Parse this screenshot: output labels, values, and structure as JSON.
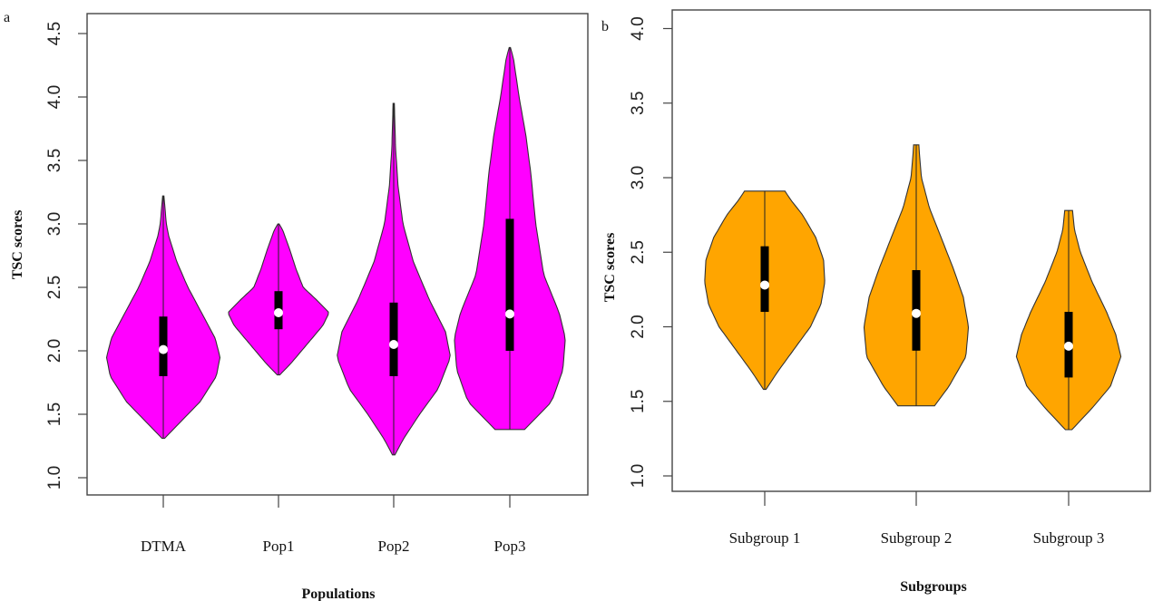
{
  "chart_data": [
    {
      "type": "violin",
      "panel_label": "a",
      "xlabel": "Populations",
      "ylabel": "TSC scores",
      "ylim": [
        1.0,
        4.5
      ],
      "yticks": [
        "1.0",
        "1.5",
        "2.0",
        "2.5",
        "3.0",
        "3.5",
        "4.0",
        "4.5"
      ],
      "fill_color": "#ff00ff",
      "categories": [
        "DTMA",
        "Pop1",
        "Pop2",
        "Pop3"
      ],
      "violins": [
        {
          "category": "DTMA",
          "min": 1.31,
          "q1": 1.8,
          "median": 2.01,
          "q3": 2.27,
          "max": 3.22,
          "profile": [
            [
              1.31,
              0.02
            ],
            [
              1.45,
              0.3
            ],
            [
              1.6,
              0.6
            ],
            [
              1.8,
              0.86
            ],
            [
              1.95,
              0.92
            ],
            [
              2.1,
              0.84
            ],
            [
              2.3,
              0.62
            ],
            [
              2.5,
              0.4
            ],
            [
              2.7,
              0.22
            ],
            [
              2.9,
              0.09
            ],
            [
              3.0,
              0.05
            ],
            [
              3.22,
              0.01
            ]
          ]
        },
        {
          "category": "Pop1",
          "min": 1.81,
          "q1": 2.17,
          "median": 2.3,
          "q3": 2.47,
          "max": 3.0,
          "profile": [
            [
              1.81,
              0.02
            ],
            [
              1.9,
              0.2
            ],
            [
              2.05,
              0.46
            ],
            [
              2.2,
              0.72
            ],
            [
              2.3,
              0.82
            ],
            [
              2.4,
              0.62
            ],
            [
              2.5,
              0.4
            ],
            [
              2.65,
              0.28
            ],
            [
              2.8,
              0.18
            ],
            [
              2.95,
              0.07
            ],
            [
              3.0,
              0.01
            ]
          ]
        },
        {
          "category": "Pop2",
          "min": 1.18,
          "q1": 1.8,
          "median": 2.05,
          "q3": 2.38,
          "max": 3.95,
          "profile": [
            [
              1.18,
              0.02
            ],
            [
              1.3,
              0.15
            ],
            [
              1.5,
              0.42
            ],
            [
              1.7,
              0.72
            ],
            [
              1.95,
              0.92
            ],
            [
              2.15,
              0.84
            ],
            [
              2.4,
              0.58
            ],
            [
              2.7,
              0.32
            ],
            [
              3.0,
              0.15
            ],
            [
              3.3,
              0.07
            ],
            [
              3.6,
              0.03
            ],
            [
              3.95,
              0.01
            ]
          ]
        },
        {
          "category": "Pop3",
          "min": 1.38,
          "q1": 2.0,
          "median": 2.29,
          "q3": 3.04,
          "max": 4.39,
          "profile": [
            [
              1.38,
              0.24
            ],
            [
              1.6,
              0.68
            ],
            [
              1.85,
              0.86
            ],
            [
              2.1,
              0.9
            ],
            [
              2.3,
              0.8
            ],
            [
              2.6,
              0.55
            ],
            [
              3.0,
              0.42
            ],
            [
              3.4,
              0.34
            ],
            [
              3.7,
              0.26
            ],
            [
              4.0,
              0.15
            ],
            [
              4.3,
              0.06
            ],
            [
              4.39,
              0.01
            ]
          ]
        }
      ]
    },
    {
      "type": "violin",
      "panel_label": "b",
      "xlabel": "Subgroups",
      "ylabel": "TSC scores",
      "ylim": [
        1.0,
        4.0
      ],
      "yticks": [
        "1.0",
        "1.5",
        "2.0",
        "2.5",
        "3.0",
        "3.5",
        "4.0"
      ],
      "fill_color": "#ffa500",
      "categories": [
        "Subgroup 1",
        "Subgroup 2",
        "Subgroup 3"
      ],
      "violins": [
        {
          "category": "Subgroup 1",
          "min": 1.58,
          "q1": 2.1,
          "median": 2.28,
          "q3": 2.54,
          "max": 2.91,
          "profile": [
            [
              1.58,
              0.02
            ],
            [
              1.7,
              0.2
            ],
            [
              1.85,
              0.45
            ],
            [
              2.0,
              0.7
            ],
            [
              2.15,
              0.86
            ],
            [
              2.3,
              0.92
            ],
            [
              2.45,
              0.9
            ],
            [
              2.6,
              0.78
            ],
            [
              2.75,
              0.58
            ],
            [
              2.85,
              0.4
            ],
            [
              2.91,
              0.31
            ]
          ]
        },
        {
          "category": "Subgroup 2",
          "min": 1.47,
          "q1": 1.84,
          "median": 2.09,
          "q3": 2.38,
          "max": 3.22,
          "profile": [
            [
              1.47,
              0.28
            ],
            [
              1.6,
              0.5
            ],
            [
              1.8,
              0.76
            ],
            [
              2.0,
              0.8
            ],
            [
              2.2,
              0.72
            ],
            [
              2.4,
              0.56
            ],
            [
              2.6,
              0.38
            ],
            [
              2.8,
              0.2
            ],
            [
              3.0,
              0.08
            ],
            [
              3.15,
              0.05
            ],
            [
              3.22,
              0.04
            ]
          ]
        },
        {
          "category": "Subgroup 3",
          "min": 1.31,
          "q1": 1.66,
          "median": 1.87,
          "q3": 2.1,
          "max": 2.78,
          "profile": [
            [
              1.31,
              0.05
            ],
            [
              1.45,
              0.35
            ],
            [
              1.6,
              0.64
            ],
            [
              1.8,
              0.8
            ],
            [
              1.95,
              0.72
            ],
            [
              2.1,
              0.58
            ],
            [
              2.3,
              0.36
            ],
            [
              2.5,
              0.18
            ],
            [
              2.65,
              0.09
            ],
            [
              2.78,
              0.06
            ]
          ]
        }
      ]
    }
  ]
}
